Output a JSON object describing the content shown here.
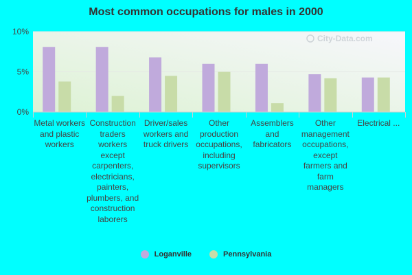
{
  "chart_data": {
    "type": "bar",
    "title": "Most common occupations for males in 2000",
    "categories": [
      "Metal workers and plastic workers",
      "Construction traders workers except carpenters, electricians, painters, plumbers, and construction laborers",
      "Driver/sales workers and truck drivers",
      "Other production occupations, including supervisors",
      "Assemblers and fabricators",
      "Other management occupations, except farmers and farm managers",
      "Electrical ..."
    ],
    "series": [
      {
        "name": "Loganville",
        "color": "#c0aadc",
        "values": [
          8.1,
          8.1,
          6.8,
          6.0,
          6.0,
          4.7,
          4.3
        ]
      },
      {
        "name": "Pennsylvania",
        "color": "#c8dca8",
        "values": [
          3.8,
          2.0,
          4.5,
          5.0,
          1.1,
          4.2,
          4.3
        ]
      }
    ],
    "ylim": [
      0,
      10
    ],
    "yticks": [
      0,
      5,
      10
    ],
    "ytick_labels": [
      "0%",
      "5%",
      "10%"
    ],
    "grid": true,
    "legend_position": "bottom"
  },
  "watermark": "City-Data.com"
}
